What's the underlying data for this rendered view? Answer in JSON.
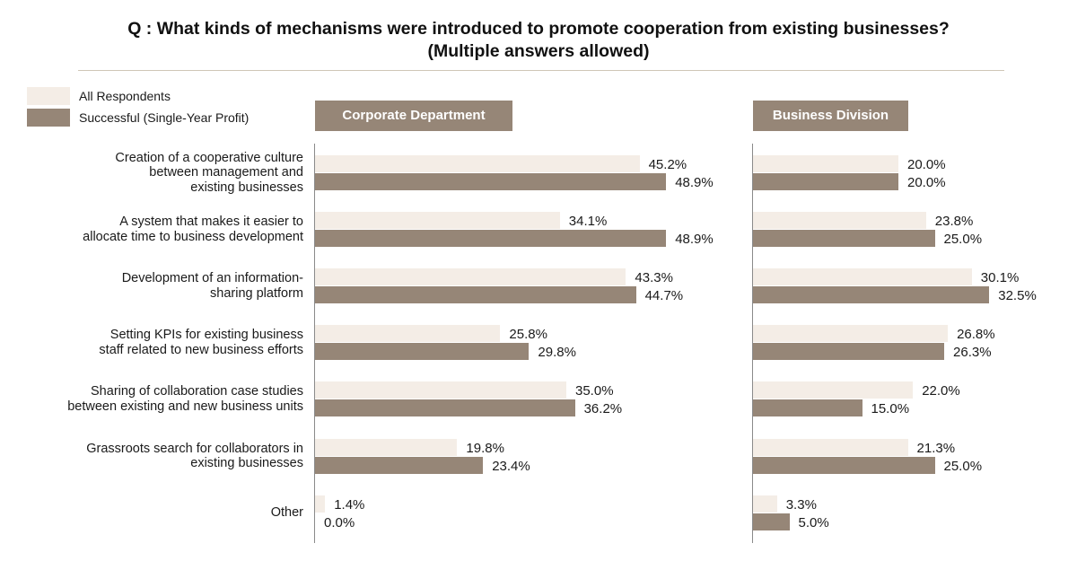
{
  "chart_data": {
    "type": "bar",
    "orientation": "horizontal",
    "title_line1": "Q : What kinds of mechanisms were introduced to promote cooperation from existing businesses?",
    "title_line2": "(Multiple answers allowed)",
    "legend": [
      {
        "label": "All Respondents",
        "color": "#f4ede6"
      },
      {
        "label": "Successful (Single-Year Profit)",
        "color": "#968677"
      }
    ],
    "categories": [
      [
        "Creation of a cooperative culture",
        "between management and",
        "existing businesses"
      ],
      [
        "A system that makes it easier to",
        "allocate time to business development"
      ],
      [
        "Development of an information-",
        "sharing platform"
      ],
      [
        "Setting KPIs for existing business",
        "staff related to new business efforts"
      ],
      [
        "Sharing of collaboration case studies",
        "between existing and new business units"
      ],
      [
        "Grassroots search for collaborators in",
        "existing businesses"
      ],
      [
        "Other"
      ]
    ],
    "panels": [
      {
        "title": "Corporate Department",
        "series": [
          {
            "name": "All Respondents",
            "values": [
              45.2,
              34.1,
              43.3,
              25.8,
              35.0,
              19.8,
              1.4
            ],
            "labels": [
              "45.2%",
              "34.1%",
              "43.3%",
              "25.8%",
              "35.0%",
              "19.8%",
              "1.4%"
            ]
          },
          {
            "name": "Successful (Single-Year Profit)",
            "values": [
              48.9,
              48.9,
              44.7,
              29.8,
              36.2,
              23.4,
              0.0
            ],
            "labels": [
              "48.9%",
              "48.9%",
              "44.7%",
              "29.8%",
              "36.2%",
              "23.4%",
              "0.0%"
            ]
          }
        ]
      },
      {
        "title": "Business Division",
        "series": [
          {
            "name": "All Respondents",
            "values": [
              20.0,
              23.8,
              30.1,
              26.8,
              22.0,
              21.3,
              3.3
            ],
            "labels": [
              "20.0%",
              "23.8%",
              "30.1%",
              "26.8%",
              "22.0%",
              "21.3%",
              "3.3%"
            ]
          },
          {
            "name": "Successful (Single-Year Profit)",
            "values": [
              20.0,
              25.0,
              32.5,
              26.3,
              15.0,
              25.0,
              5.0
            ],
            "labels": [
              "20.0%",
              "25.0%",
              "32.5%",
              "26.3%",
              "15.0%",
              "25.0%",
              "5.0%"
            ]
          }
        ]
      }
    ]
  }
}
